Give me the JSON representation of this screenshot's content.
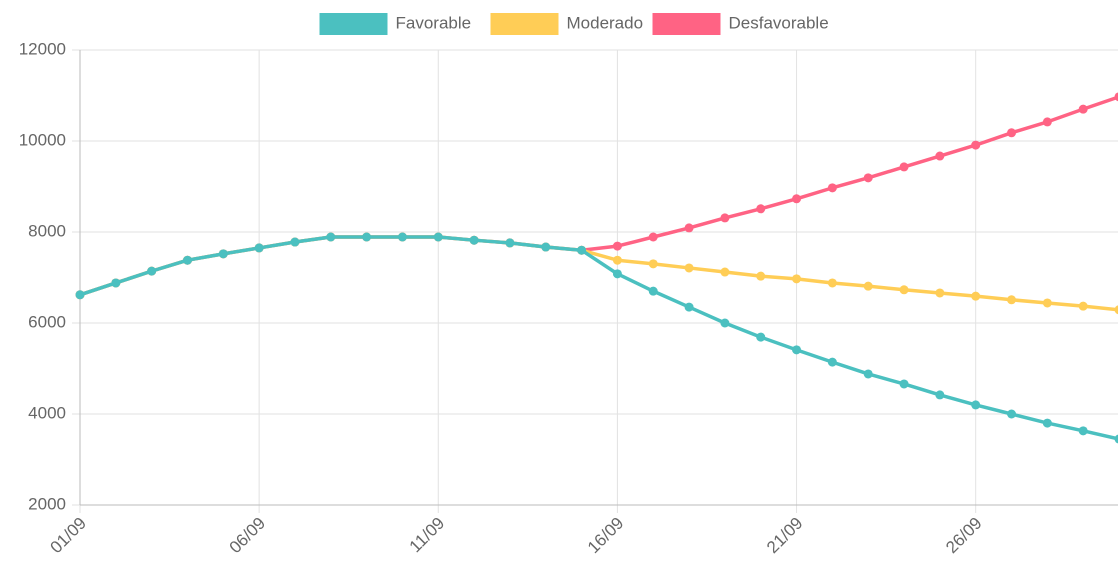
{
  "chart_data": {
    "type": "line",
    "categories": [
      "01/09",
      null,
      null,
      null,
      null,
      "06/09",
      null,
      null,
      null,
      null,
      "11/09",
      null,
      null,
      null,
      null,
      "16/09",
      null,
      null,
      null,
      null,
      "21/09",
      null,
      null,
      null,
      null,
      "26/09",
      null,
      null,
      null,
      null
    ],
    "series": [
      {
        "name": "Favorable",
        "color": "#4bc0c0",
        "values": [
          6620,
          6880,
          7140,
          7380,
          7520,
          7650,
          7780,
          7890,
          7890,
          7890,
          7890,
          7820,
          7760,
          7670,
          7600,
          7080,
          6700,
          6350,
          6000,
          5690,
          5410,
          5140,
          4880,
          4660,
          4420,
          4200,
          4000,
          3800,
          3630,
          3450
        ]
      },
      {
        "name": "Moderado",
        "color": "#ffcd56",
        "values": [
          6620,
          6880,
          7140,
          7380,
          7520,
          7650,
          7780,
          7890,
          7890,
          7890,
          7890,
          7820,
          7760,
          7670,
          7600,
          7380,
          7300,
          7210,
          7120,
          7030,
          6970,
          6880,
          6810,
          6730,
          6660,
          6590,
          6510,
          6440,
          6370,
          6290
        ]
      },
      {
        "name": "Desfavorable",
        "color": "#ff6384",
        "values": [
          6620,
          6880,
          7140,
          7380,
          7520,
          7650,
          7780,
          7890,
          7890,
          7890,
          7890,
          7820,
          7760,
          7670,
          7600,
          7690,
          7890,
          8090,
          8310,
          8510,
          8730,
          8970,
          9190,
          9430,
          9670,
          9910,
          10180,
          10420,
          10700,
          10970
        ]
      }
    ],
    "ylim": [
      2000,
      12000
    ],
    "yticks": [
      2000,
      4000,
      6000,
      8000,
      10000,
      12000
    ],
    "grid": true
  }
}
